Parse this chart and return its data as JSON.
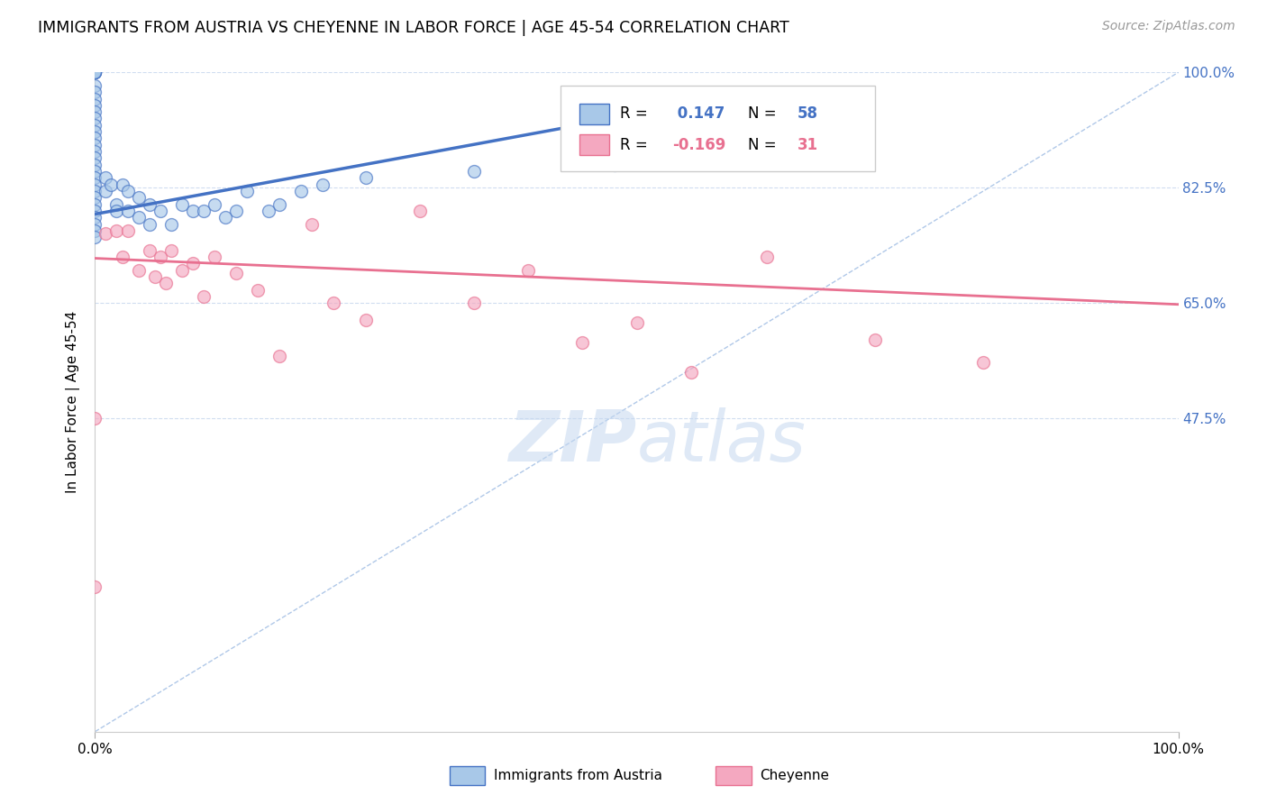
{
  "title": "IMMIGRANTS FROM AUSTRIA VS CHEYENNE IN LABOR FORCE | AGE 45-54 CORRELATION CHART",
  "source": "Source: ZipAtlas.com",
  "ylabel": "In Labor Force | Age 45-54",
  "xlim": [
    0,
    1.0
  ],
  "ylim": [
    0,
    1.0
  ],
  "ytick_values": [
    0.475,
    0.65,
    0.825,
    1.0
  ],
  "ytick_labels": [
    "47.5%",
    "65.0%",
    "82.5%",
    "100.0%"
  ],
  "xtick_values": [
    0.0,
    1.0
  ],
  "xtick_labels": [
    "0.0%",
    "100.0%"
  ],
  "color_blue": "#a8c8e8",
  "color_pink": "#f4a8c0",
  "color_blue_line": "#4472c4",
  "color_pink_line": "#e87090",
  "color_diag": "#b0c8e8",
  "watermark_zip": "ZIP",
  "watermark_atlas": "atlas",
  "legend_r1": " 0.147",
  "legend_n1": "58",
  "legend_r2": "-0.169",
  "legend_n2": "31",
  "austria_x": [
    0.0,
    0.0,
    0.0,
    0.0,
    0.0,
    0.0,
    0.0,
    0.0,
    0.0,
    0.0,
    0.0,
    0.0,
    0.0,
    0.0,
    0.0,
    0.0,
    0.0,
    0.0,
    0.0,
    0.0,
    0.0,
    0.0,
    0.0,
    0.0,
    0.0,
    0.0,
    0.0,
    0.0,
    0.0,
    0.0,
    0.01,
    0.01,
    0.015,
    0.02,
    0.02,
    0.025,
    0.03,
    0.03,
    0.04,
    0.04,
    0.05,
    0.05,
    0.06,
    0.07,
    0.08,
    0.09,
    0.1,
    0.11,
    0.12,
    0.13,
    0.14,
    0.16,
    0.17,
    0.19,
    0.21,
    0.25,
    0.35,
    0.48
  ],
  "austria_y": [
    1.0,
    1.0,
    1.0,
    1.0,
    1.0,
    1.0,
    0.98,
    0.97,
    0.96,
    0.95,
    0.94,
    0.93,
    0.92,
    0.91,
    0.9,
    0.89,
    0.88,
    0.87,
    0.86,
    0.85,
    0.84,
    0.83,
    0.82,
    0.81,
    0.8,
    0.79,
    0.78,
    0.77,
    0.76,
    0.75,
    0.84,
    0.82,
    0.83,
    0.8,
    0.79,
    0.83,
    0.82,
    0.79,
    0.81,
    0.78,
    0.8,
    0.77,
    0.79,
    0.77,
    0.8,
    0.79,
    0.79,
    0.8,
    0.78,
    0.79,
    0.82,
    0.79,
    0.8,
    0.82,
    0.83,
    0.84,
    0.85,
    0.86
  ],
  "cheyenne_x": [
    0.0,
    0.0,
    0.01,
    0.02,
    0.025,
    0.03,
    0.04,
    0.05,
    0.055,
    0.06,
    0.065,
    0.07,
    0.08,
    0.09,
    0.1,
    0.11,
    0.13,
    0.15,
    0.17,
    0.2,
    0.22,
    0.25,
    0.3,
    0.35,
    0.4,
    0.45,
    0.5,
    0.55,
    0.62,
    0.72,
    0.82
  ],
  "cheyenne_y": [
    0.475,
    0.22,
    0.755,
    0.76,
    0.72,
    0.76,
    0.7,
    0.73,
    0.69,
    0.72,
    0.68,
    0.73,
    0.7,
    0.71,
    0.66,
    0.72,
    0.695,
    0.67,
    0.57,
    0.77,
    0.65,
    0.625,
    0.79,
    0.65,
    0.7,
    0.59,
    0.62,
    0.545,
    0.72,
    0.595,
    0.56
  ],
  "blue_line_x": [
    0.0,
    0.48
  ],
  "blue_line_y": [
    0.785,
    0.93
  ],
  "pink_line_x": [
    0.0,
    1.0
  ],
  "pink_line_y": [
    0.718,
    0.648
  ],
  "diag_line_x": [
    0.0,
    1.0
  ],
  "diag_line_y": [
    0.0,
    1.0
  ]
}
